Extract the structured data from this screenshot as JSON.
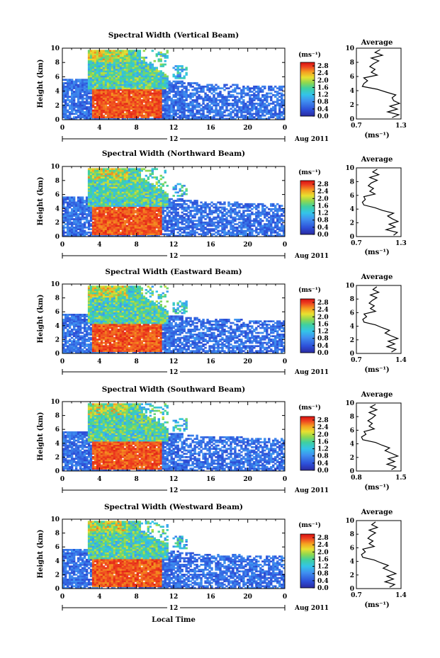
{
  "figure": {
    "bottom_xlabel": "Local Time",
    "panel_titles": [
      "Spectral Width (Vertical Beam)",
      "Spectral Width (Northward Beam)",
      "Spectral Width (Eastward Beam)",
      "Spectral Width (Southward Beam)",
      "Spectral Width (Westward Beam)"
    ]
  },
  "chart_data": [
    {
      "type": "heatmap",
      "title": "Spectral Width (Vertical Beam)",
      "xlabel": "",
      "ylabel": "Height (km)",
      "xticks": [
        "0",
        "4",
        "8",
        "12",
        "16",
        "20",
        "0"
      ],
      "xlim": [
        0,
        24
      ],
      "ylim": [
        0,
        10
      ],
      "yticks": [
        "0",
        "2",
        "4",
        "6",
        "8",
        "10"
      ],
      "date_label": "12",
      "month_label": "Aug 2011",
      "colorbar": {
        "unit": "(ms⁻¹)",
        "ticks": [
          "0.0",
          "0.4",
          "0.8",
          "1.2",
          "1.6",
          "2.0",
          "2.4",
          "2.8"
        ],
        "range": [
          0,
          3.0
        ]
      },
      "profile": {
        "title": "Average",
        "xlabel": "(ms⁻¹)",
        "xticks": [
          "0.7",
          "1.3"
        ],
        "xlim": [
          0.7,
          1.3
        ],
        "height": [
          0.2,
          0.6,
          1.0,
          1.4,
          1.8,
          2.2,
          2.6,
          3.0,
          3.4,
          3.8,
          4.2,
          4.6,
          5.0,
          5.4,
          5.8,
          6.2,
          6.6,
          7.0,
          7.4,
          7.8,
          8.2,
          8.6,
          9.0,
          9.4,
          9.8
        ],
        "width": [
          1.18,
          1.27,
          1.12,
          1.25,
          1.15,
          1.28,
          1.2,
          1.18,
          1.23,
          1.1,
          0.98,
          0.78,
          0.8,
          0.85,
          0.8,
          0.98,
          0.9,
          0.95,
          0.88,
          0.93,
          1.0,
          0.9,
          1.05,
          0.95,
          1.02
        ]
      }
    },
    {
      "type": "heatmap",
      "title": "Spectral Width (Northward Beam)",
      "xlabel": "",
      "ylabel": "Height (km)",
      "xticks": [
        "0",
        "4",
        "8",
        "12",
        "16",
        "20",
        "0"
      ],
      "xlim": [
        0,
        24
      ],
      "ylim": [
        0,
        10
      ],
      "yticks": [
        "0",
        "2",
        "4",
        "6",
        "8",
        "10"
      ],
      "date_label": "12",
      "month_label": "Aug 2011",
      "colorbar": {
        "unit": "(ms⁻¹)",
        "ticks": [
          "0.0",
          "0.4",
          "0.8",
          "1.2",
          "1.6",
          "2.0",
          "2.4",
          "2.8"
        ],
        "range": [
          0,
          3.0
        ]
      },
      "profile": {
        "title": "Average",
        "xlabel": "(ms⁻¹)",
        "xticks": [
          "0.7",
          "1.3"
        ],
        "xlim": [
          0.7,
          1.3
        ],
        "height": [
          0.2,
          0.6,
          1.0,
          1.4,
          1.8,
          2.2,
          2.6,
          3.0,
          3.4,
          3.8,
          4.2,
          4.6,
          5.0,
          5.4,
          5.8,
          6.2,
          6.6,
          7.0,
          7.4,
          7.8,
          8.2,
          8.6,
          9.0,
          9.4,
          9.8
        ],
        "width": [
          1.2,
          1.25,
          1.1,
          1.22,
          1.14,
          1.26,
          1.18,
          1.12,
          1.2,
          1.05,
          0.95,
          0.8,
          0.78,
          0.82,
          0.8,
          0.95,
          0.88,
          0.93,
          0.86,
          0.9,
          0.98,
          0.88,
          1.0,
          0.92,
          0.98
        ]
      }
    },
    {
      "type": "heatmap",
      "title": "Spectral Width (Eastward Beam)",
      "xlabel": "",
      "ylabel": "Height (km)",
      "xticks": [
        "0",
        "4",
        "8",
        "12",
        "16",
        "20",
        "0"
      ],
      "xlim": [
        0,
        24
      ],
      "ylim": [
        0,
        10
      ],
      "yticks": [
        "0",
        "2",
        "4",
        "6",
        "8",
        "10"
      ],
      "date_label": "12",
      "month_label": "Aug 2011",
      "colorbar": {
        "unit": "(ms⁻¹)",
        "ticks": [
          "0.0",
          "0.4",
          "0.8",
          "1.2",
          "1.6",
          "2.0",
          "2.4",
          "2.8"
        ],
        "range": [
          0,
          3.0
        ]
      },
      "profile": {
        "title": "Average",
        "xlabel": "(ms⁻¹)",
        "xticks": [
          "0.7",
          "1.4"
        ],
        "xlim": [
          0.7,
          1.4
        ],
        "height": [
          0.2,
          0.6,
          1.0,
          1.4,
          1.8,
          2.2,
          2.6,
          3.0,
          3.4,
          3.8,
          4.2,
          4.6,
          5.0,
          5.4,
          5.8,
          6.2,
          6.6,
          7.0,
          7.4,
          7.8,
          8.2,
          8.6,
          9.0,
          9.4,
          9.8
        ],
        "width": [
          1.25,
          1.32,
          1.18,
          1.3,
          1.2,
          1.35,
          1.24,
          1.15,
          1.22,
          1.1,
          1.0,
          0.82,
          0.8,
          0.86,
          0.82,
          1.0,
          0.92,
          0.98,
          0.9,
          0.95,
          1.02,
          0.92,
          1.05,
          0.96,
          1.02
        ]
      }
    },
    {
      "type": "heatmap",
      "title": "Spectral Width (Southward Beam)",
      "xlabel": "",
      "ylabel": "Height (km)",
      "xticks": [
        "0",
        "4",
        "8",
        "12",
        "16",
        "20",
        "0"
      ],
      "xlim": [
        0,
        24
      ],
      "ylim": [
        0,
        10
      ],
      "yticks": [
        "0",
        "2",
        "4",
        "6",
        "8",
        "10"
      ],
      "date_label": "12",
      "month_label": "Aug 2011",
      "colorbar": {
        "unit": "(ms⁻¹)",
        "ticks": [
          "0.0",
          "0.4",
          "0.8",
          "1.2",
          "1.6",
          "2.0",
          "2.4",
          "2.8"
        ],
        "range": [
          0,
          3.0
        ]
      },
      "profile": {
        "title": "Average",
        "xlabel": "(ms⁻¹)",
        "xticks": [
          "0.8",
          "1.5"
        ],
        "xlim": [
          0.8,
          1.5
        ],
        "height": [
          0.2,
          0.6,
          1.0,
          1.4,
          1.8,
          2.2,
          2.6,
          3.0,
          3.4,
          3.8,
          4.2,
          4.6,
          5.0,
          5.4,
          5.8,
          6.2,
          6.6,
          7.0,
          7.4,
          7.8,
          8.2,
          8.6,
          9.0,
          9.4,
          9.8
        ],
        "width": [
          1.35,
          1.42,
          1.28,
          1.4,
          1.3,
          1.45,
          1.35,
          1.25,
          1.32,
          1.2,
          1.1,
          0.9,
          0.88,
          0.95,
          0.92,
          1.08,
          1.0,
          1.05,
          0.98,
          1.05,
          1.1,
          1.0,
          1.12,
          1.02,
          1.1
        ]
      }
    },
    {
      "type": "heatmap",
      "title": "Spectral Width (Westward Beam)",
      "xlabel": "Local Time",
      "ylabel": "Height (km)",
      "xticks": [
        "0",
        "4",
        "8",
        "12",
        "16",
        "20",
        "0"
      ],
      "xlim": [
        0,
        24
      ],
      "ylim": [
        0,
        10
      ],
      "yticks": [
        "0",
        "2",
        "4",
        "6",
        "8",
        "10"
      ],
      "date_label": "12",
      "month_label": "Aug 2011",
      "colorbar": {
        "unit": "(ms⁻¹)",
        "ticks": [
          "0.0",
          "0.4",
          "0.8",
          "1.2",
          "1.6",
          "2.0",
          "2.4",
          "2.8"
        ],
        "range": [
          0,
          3.0
        ]
      },
      "profile": {
        "title": "Average",
        "xlabel": "(ms⁻¹)",
        "xticks": [
          "0.7",
          "1.4"
        ],
        "xlim": [
          0.7,
          1.4
        ],
        "height": [
          0.2,
          0.6,
          1.0,
          1.4,
          1.8,
          2.2,
          2.6,
          3.0,
          3.4,
          3.8,
          4.2,
          4.6,
          5.0,
          5.4,
          5.8,
          6.2,
          6.6,
          7.0,
          7.4,
          7.8,
          8.2,
          8.6,
          9.0,
          9.4,
          9.8
        ],
        "width": [
          1.22,
          1.3,
          1.15,
          1.28,
          1.18,
          1.32,
          1.22,
          1.12,
          1.2,
          1.08,
          0.98,
          0.8,
          0.78,
          0.84,
          0.8,
          0.98,
          0.9,
          0.96,
          0.88,
          0.93,
          1.0,
          0.9,
          1.03,
          0.94,
          1.0
        ]
      }
    }
  ]
}
